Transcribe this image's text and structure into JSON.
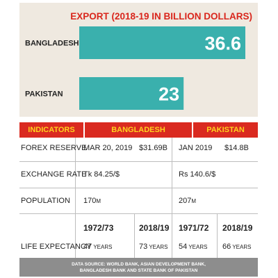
{
  "chart_data": {
    "type": "bar",
    "orientation": "horizontal",
    "title": "EXPORT (2018-19 IN BILLION DOLLARS)",
    "categories": [
      "BANGLADESH",
      "PAKISTAN"
    ],
    "values": [
      36.6,
      23
    ],
    "value_labels": [
      "36.6",
      "23"
    ],
    "xlim": [
      0,
      36.6
    ],
    "grid": false,
    "colors": {
      "bar": "#3ab0ad",
      "title": "#d9261c",
      "panel": "#efe9e0",
      "value_text": "#ffffff"
    }
  },
  "indicators": {
    "headers": [
      "INDICATORS",
      "BANGLADESH",
      "PAKISTAN"
    ],
    "colors": {
      "header_bg": "#da2a20",
      "header_text": "#ffd21e"
    },
    "rows": [
      {
        "label": "FOREX RESERVE",
        "bd_date": "MAR 20, 2019",
        "bd_value": "$31.69B",
        "pk_date": "JAN 2019",
        "pk_value": "$14.8B"
      },
      {
        "label": "EXCHANGE RATE",
        "bd_cur": "Tk",
        "bd_rate": " 84.25/$",
        "pk_cur": "Rs",
        "pk_rate": " 140.6/$"
      },
      {
        "label": "POPULATION",
        "bd_num": "170",
        "bd_unit": "M",
        "pk_num": "207",
        "pk_unit": "M"
      }
    ],
    "life_expectancy": {
      "label": "LIFE EXPECTANCY",
      "years": [
        "1972/73",
        "2018/19",
        "1971/72",
        "2018/19"
      ],
      "values": [
        {
          "num": "47",
          "unit": " YEARS"
        },
        {
          "num": "73",
          "unit": " YEARS"
        },
        {
          "num": "54",
          "unit": " YEARS"
        },
        {
          "num": "66",
          "unit": " YEARS"
        }
      ]
    }
  },
  "source": {
    "line1": "DATA SOURCE: WORLD BANK, ASIAN DEVELOPMENT BANK,",
    "line2": "BANGLADESH BANK AND STATE BANK OF PAKISTAN"
  }
}
